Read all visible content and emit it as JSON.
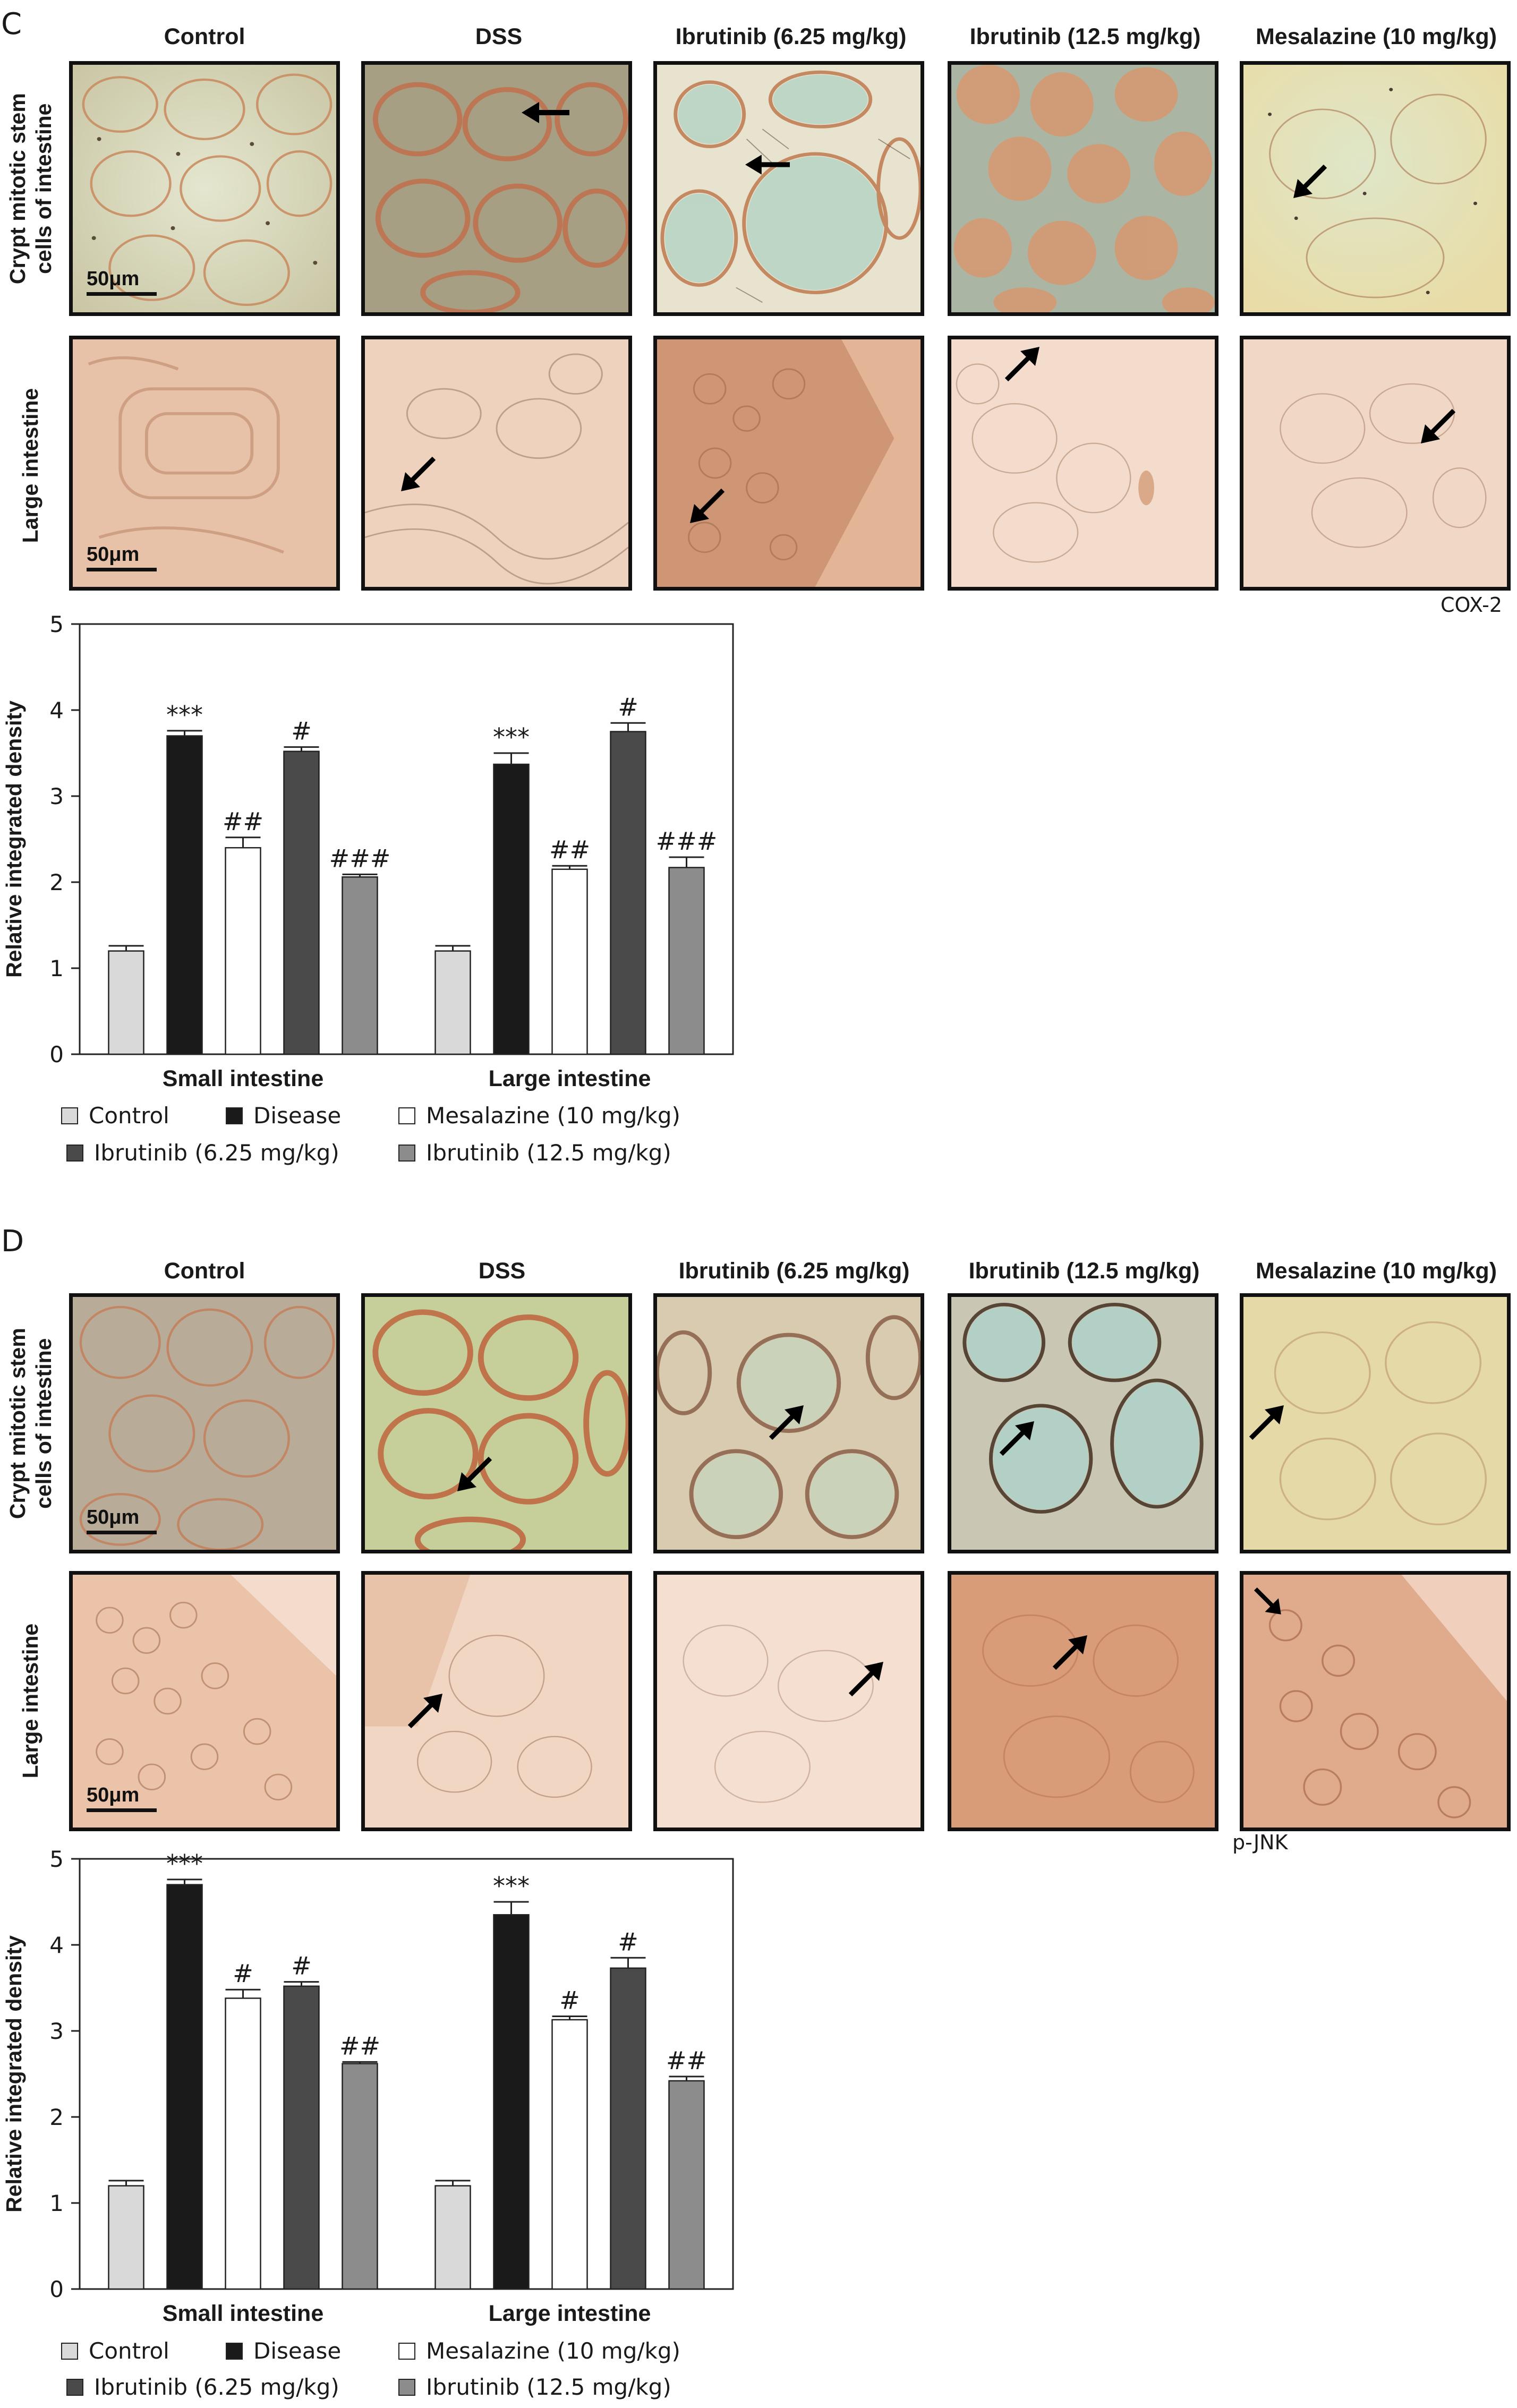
{
  "colors": {
    "control": "#d9d9d9",
    "disease": "#1a1a1a",
    "mesalazine": "#ffffff",
    "ibrutinib_low": "#4a4a4a",
    "ibrutinib_high": "#8c8c8c"
  },
  "icons": [
    "arrow-icon"
  ],
  "panels": [
    {
      "letter": "C",
      "marker": "COX-2",
      "columns": [
        "Control",
        "DSS",
        "Ibrutinib (6.25 mg/kg)",
        "Ibrutinib (12.5 mg/kg)",
        "Mesalazine (10 mg/kg)"
      ],
      "rows": [
        "Crypt mitotic stem\ncells of intestine",
        "Large intestine"
      ],
      "scale_bar": "50μm",
      "legend": [
        "Control",
        "Disease",
        "Mesalazine (10 mg/kg)",
        "Ibrutinib (6.25 mg/kg)",
        "Ibrutinib (12.5 mg/kg)"
      ],
      "chart_data": {
        "type": "bar",
        "title": "",
        "xlabel": "",
        "ylabel": "Relative integrated density",
        "ylim": [
          0,
          5
        ],
        "yticks": [
          0,
          1,
          2,
          3,
          4,
          5
        ],
        "categories": [
          "Small intestine",
          "Large intestine"
        ],
        "series": [
          {
            "name": "Control",
            "values": [
              1.2,
              1.2
            ],
            "errors": [
              0.06,
              0.06
            ],
            "annotations": [
              "",
              ""
            ]
          },
          {
            "name": "Disease",
            "values": [
              3.7,
              3.37
            ],
            "errors": [
              0.06,
              0.13
            ],
            "annotations": [
              "***",
              "***"
            ]
          },
          {
            "name": "Mesalazine (10 mg/kg)",
            "values": [
              2.4,
              2.15
            ],
            "errors": [
              0.12,
              0.04
            ],
            "annotations": [
              "##",
              "##"
            ]
          },
          {
            "name": "Ibrutinib (6.25 mg/kg)",
            "values": [
              3.52,
              3.75
            ],
            "errors": [
              0.05,
              0.1
            ],
            "annotations": [
              "#",
              "#"
            ]
          },
          {
            "name": "Ibrutinib (12.5 mg/kg)",
            "values": [
              2.06,
              2.17
            ],
            "errors": [
              0.03,
              0.12
            ],
            "annotations": [
              "###",
              "###"
            ]
          }
        ]
      }
    },
    {
      "letter": "D",
      "marker": "p-JNK",
      "columns": [
        "Control",
        "DSS",
        "Ibrutinib (6.25 mg/kg)",
        "Ibrutinib (12.5 mg/kg)",
        "Mesalazine (10 mg/kg)"
      ],
      "rows": [
        "Crypt mitotic stem\ncells of intestine",
        "Large intestine"
      ],
      "scale_bar": "50μm",
      "legend": [
        "Control",
        "Disease",
        "Mesalazine (10 mg/kg)",
        "Ibrutinib (6.25 mg/kg)",
        "Ibrutinib (12.5 mg/kg)"
      ],
      "chart_data": {
        "type": "bar",
        "title": "",
        "xlabel": "",
        "ylabel": "Relative integrated density",
        "ylim": [
          0,
          5
        ],
        "yticks": [
          0,
          1,
          2,
          3,
          4,
          5
        ],
        "categories": [
          "Small intestine",
          "Large intestine"
        ],
        "series": [
          {
            "name": "Control",
            "values": [
              1.2,
              1.2
            ],
            "errors": [
              0.06,
              0.06
            ],
            "annotations": [
              "",
              ""
            ]
          },
          {
            "name": "Disease",
            "values": [
              4.7,
              4.35
            ],
            "errors": [
              0.06,
              0.15
            ],
            "annotations": [
              "***",
              "***"
            ]
          },
          {
            "name": "Mesalazine (10 mg/kg)",
            "values": [
              3.38,
              3.13
            ],
            "errors": [
              0.1,
              0.04
            ],
            "annotations": [
              "#",
              "#"
            ]
          },
          {
            "name": "Ibrutinib (6.25 mg/kg)",
            "values": [
              3.52,
              3.73
            ],
            "errors": [
              0.05,
              0.12
            ],
            "annotations": [
              "#",
              "#"
            ]
          },
          {
            "name": "Ibrutinib (12.5 mg/kg)",
            "values": [
              2.62,
              2.42
            ],
            "errors": [
              0.02,
              0.05
            ],
            "annotations": [
              "##",
              "##"
            ]
          }
        ]
      }
    }
  ]
}
